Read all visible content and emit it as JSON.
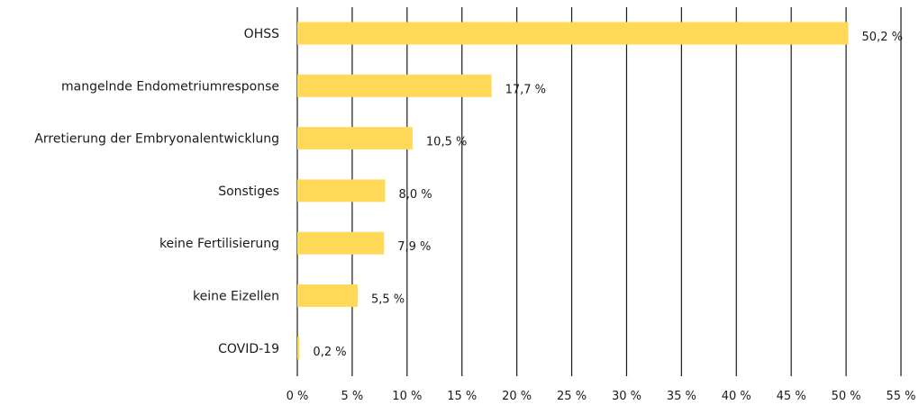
{
  "chart_data": {
    "type": "bar",
    "orientation": "horizontal",
    "categories": [
      "OHSS",
      "mangelnde Endometriumresponse",
      "Arretierung der Embryonalentwicklung",
      "Sonstiges",
      "keine Fertilisierung",
      "keine Eizellen",
      "COVID-19"
    ],
    "values": [
      50.2,
      17.7,
      10.5,
      8.0,
      7.9,
      5.5,
      0.2
    ],
    "value_labels": [
      "50,2 %",
      "17,7 %",
      "10,5 %",
      "8,0 %",
      "7,9 %",
      "5,5 %",
      "0,2 %"
    ],
    "x_ticks": [
      0,
      5,
      10,
      15,
      20,
      25,
      30,
      35,
      40,
      45,
      50,
      55
    ],
    "x_tick_labels": [
      "0 %",
      "5 %",
      "10 %",
      "15 %",
      "20 %",
      "25 %",
      "30 %",
      "35 %",
      "40 %",
      "45 %",
      "50 %",
      "55 %"
    ],
    "xlim": [
      0,
      55
    ],
    "grid": "vertical",
    "bar_color": "#ffd957",
    "grid_color": "#1a1a1a",
    "title": "",
    "xlabel": "",
    "ylabel": ""
  }
}
